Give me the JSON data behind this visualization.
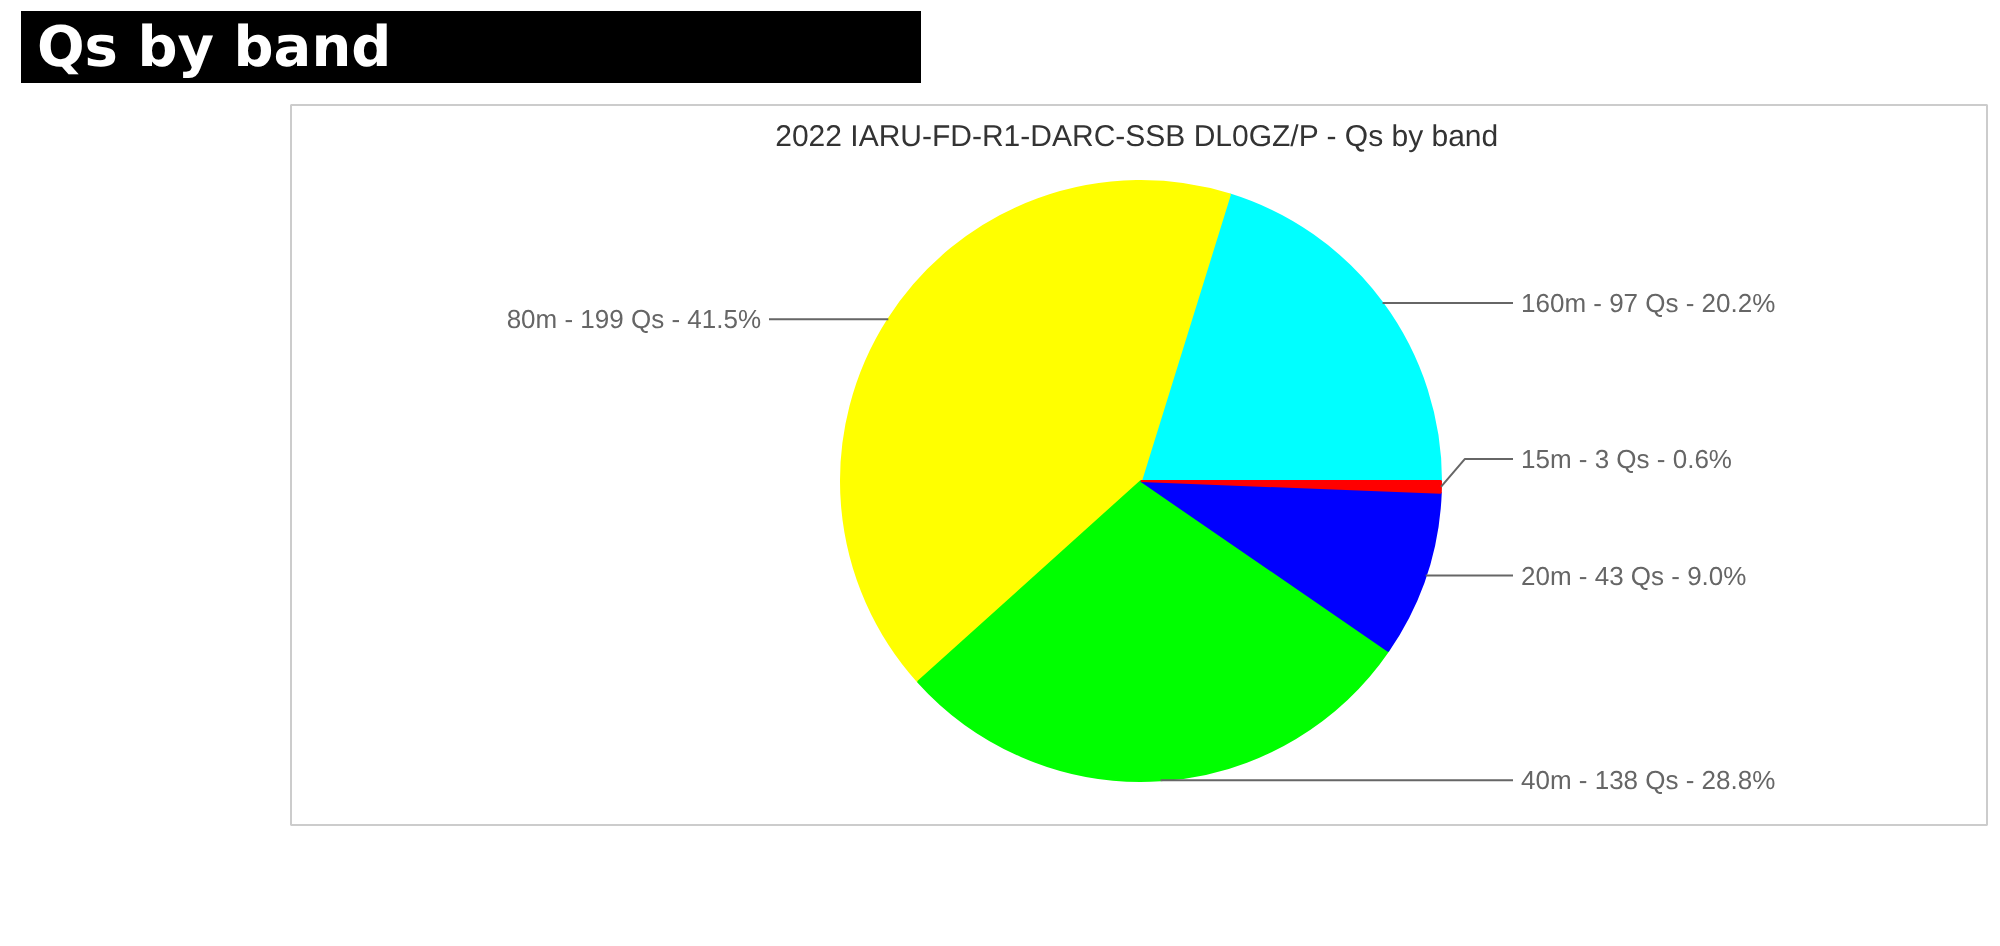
{
  "chart_data": {
    "type": "pie",
    "title": "Qs by band",
    "subtitle": "2022 IARU-FD-R1-DARC-SSB DL0GZ/P - Qs by band",
    "categories": [
      "160m",
      "80m",
      "40m",
      "20m",
      "15m"
    ],
    "values": [
      97,
      199,
      138,
      43,
      3
    ],
    "colors": [
      "#00ffff",
      "#ffff00",
      "#00ff00",
      "#0000ff",
      "#ff0000"
    ],
    "value_labels": [
      "97 Qs - 20.2%",
      "199 Qs - 41.5%",
      "138 Qs - 28.8%",
      "43 Qs - 9.0%",
      "3 Qs - 0.6%"
    ]
  }
}
